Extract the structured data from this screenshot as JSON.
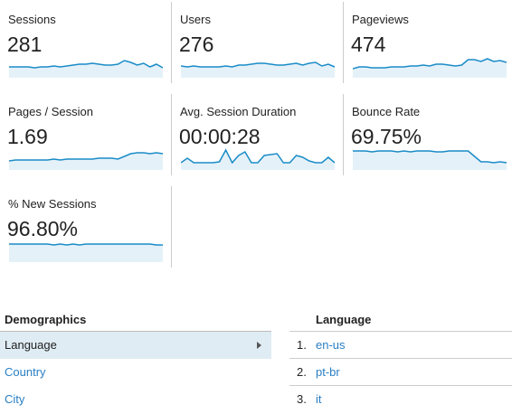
{
  "metrics": [
    {
      "label": "Sessions",
      "value": "281"
    },
    {
      "label": "Users",
      "value": "276"
    },
    {
      "label": "Pageviews",
      "value": "474"
    },
    {
      "label": "Pages / Session",
      "value": "1.69"
    },
    {
      "label": "Avg. Session Duration",
      "value": "00:00:28"
    },
    {
      "label": "Bounce Rate",
      "value": "69.75%"
    },
    {
      "label": "% New Sessions",
      "value": "96.80%"
    }
  ],
  "demographics": {
    "title": "Demographics",
    "items": [
      "Language",
      "Country",
      "City"
    ]
  },
  "language_table": {
    "header": "Language",
    "rows": [
      {
        "rank": "1.",
        "name": "en-us"
      },
      {
        "rank": "2.",
        "name": "pt-br"
      },
      {
        "rank": "3.",
        "name": "it"
      }
    ]
  }
}
